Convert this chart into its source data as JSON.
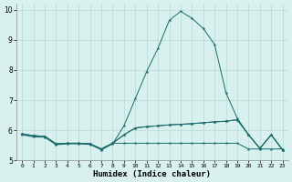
{
  "xlabel": "Humidex (Indice chaleur)",
  "xlim": [
    -0.5,
    23.5
  ],
  "ylim": [
    5.0,
    10.2
  ],
  "yticks": [
    5,
    6,
    7,
    8,
    9,
    10
  ],
  "xticks": [
    0,
    1,
    2,
    3,
    4,
    5,
    6,
    7,
    8,
    9,
    10,
    11,
    12,
    13,
    14,
    15,
    16,
    17,
    18,
    19,
    20,
    21,
    22,
    23
  ],
  "background_color": "#d8f0ee",
  "grid_color": "#b8d8d4",
  "line_color": "#1a6b6b",
  "line_main_x": [
    0,
    1,
    2,
    3,
    4,
    5,
    6,
    7,
    8,
    9,
    10,
    11,
    12,
    13,
    14,
    15,
    16,
    17,
    18,
    19,
    20,
    21,
    22,
    23
  ],
  "line_main_y": [
    5.85,
    5.78,
    5.77,
    5.52,
    5.55,
    5.55,
    5.53,
    5.35,
    5.55,
    6.15,
    7.05,
    7.95,
    8.72,
    9.65,
    9.95,
    9.72,
    9.38,
    8.85,
    7.25,
    6.4,
    5.85,
    5.4,
    5.85,
    5.35
  ],
  "line_mid_x": [
    0,
    1,
    2,
    3,
    4,
    5,
    6,
    7,
    8,
    9,
    10,
    11,
    12,
    13,
    14,
    15,
    16,
    17,
    18,
    19,
    20,
    21,
    22,
    23
  ],
  "line_mid_y": [
    5.88,
    5.82,
    5.8,
    5.55,
    5.57,
    5.57,
    5.55,
    5.38,
    5.57,
    5.85,
    6.08,
    6.12,
    6.15,
    6.18,
    6.2,
    6.22,
    6.25,
    6.28,
    6.3,
    6.35,
    5.85,
    5.4,
    5.85,
    5.35
  ],
  "line_flat_x": [
    0,
    1,
    2,
    3,
    4,
    5,
    6,
    7,
    8,
    9,
    10,
    11,
    12,
    13,
    14,
    15,
    16,
    17,
    18,
    19,
    20,
    21,
    22,
    23
  ],
  "line_flat_y": [
    5.88,
    5.82,
    5.8,
    5.55,
    5.57,
    5.57,
    5.55,
    5.38,
    5.57,
    5.57,
    5.57,
    5.57,
    5.57,
    5.57,
    5.57,
    5.57,
    5.57,
    5.57,
    5.57,
    5.57,
    5.38,
    5.38,
    5.38,
    5.38
  ],
  "line_upper_x": [
    0,
    1,
    2,
    3,
    4,
    5,
    6,
    7,
    8,
    9,
    10,
    11,
    12,
    13,
    14,
    15,
    16,
    17,
    18,
    19,
    20,
    21,
    22,
    23
  ],
  "line_upper_y": [
    5.88,
    5.82,
    5.8,
    5.55,
    5.57,
    5.57,
    5.55,
    5.38,
    5.57,
    5.85,
    6.08,
    6.12,
    6.15,
    6.18,
    6.2,
    6.22,
    6.25,
    6.28,
    6.3,
    6.35,
    5.85,
    5.4,
    5.85,
    5.35
  ]
}
